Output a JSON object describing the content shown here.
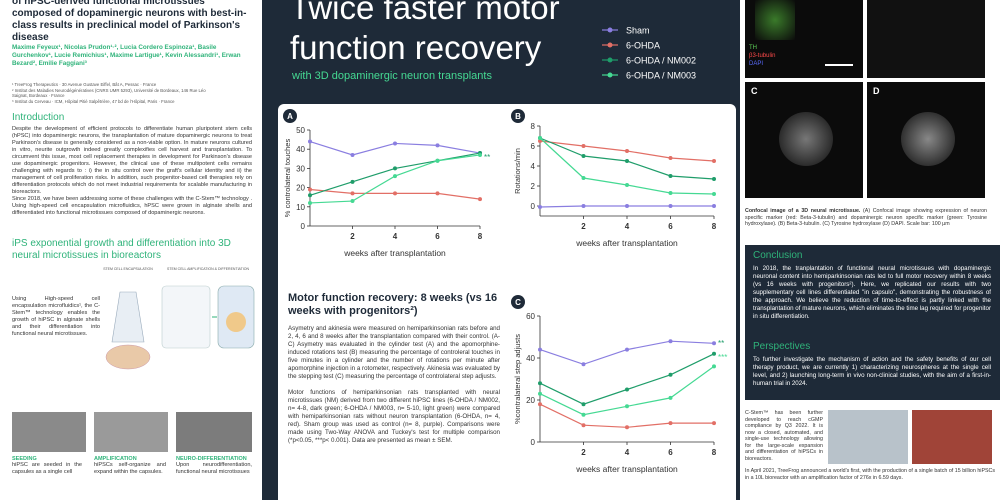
{
  "left": {
    "title": "of hPSC-derived functional microtissues composed of dopaminergic neurons with best-in-class results in preclinical model of Parkinson's disease",
    "authors": "Maxime Feyeux¹, Nicolas Prudon¹·², Lucia Cordero Espinoza¹, Basile Gurchenkov¹, Lucie Remichius¹, Maxime Lartigue¹, Kevin Alessandri¹, Erwan Bezard², Emilie Faggiani³",
    "affiliations": [
      "¹ TreeFrog Therapeutics · 30 Avenue Gustave Eiffel, Bât A, Pessac · France",
      "² Institut des Maladies Neurodégénératives (CNRS UMR 5293), Université de Bordeaux, 146 Rue Léo Saignat, Bordeaux · France",
      "³ Institut du Cerveau · ICM, Hôpital Pitié Salpêtrière, 47 bd de l'Hôpital, Paris · France"
    ],
    "intro_heading": "Introduction",
    "intro_paragraphs": [
      "Despite the development of efficient protocols to differentiate human pluripotent stem cells (hPSC) into dopaminergic neurons, the transplantation of mature dopaminergic neurons to treat Parkinson's disease is generally considered as a non-viable option. In mature neurons cultured in vitro, neurite outgrowth indeed greatly complexifies cell harvest and transplantation. To circumvent this issue, most cell replacement therapies in development for Parkinson's disease use dopaminergic progenitors. However, the clinical use of these multipotent cells remains challenging with regards to : i) the in situ control over the graft's cellular identity and ii) the management of cell proliferation risks. In addition, such progenitor-based cell therapies rely on differentiation protocols which do not meet industrial requirements for scalable manufacturing in bioreactors.",
      "Since 2018, we have been addressing some of these challenges with the C-Stem™ technology . Using high-speed cell encapsulation microfluidics, hPSC were grown in alginate shells and differentiated into functional microtissues composed of dopaminergic neurons."
    ],
    "ips_heading": "iPS exponential growth and differentiation into 3D neural microtissues in bioreactors",
    "ips_text": "Using High-speed cell encapsulation microfluidics¹, the C-Stem™ technology enables the growth of hiPSC in alginate shells and their differentiation into functional neural microtissues.",
    "diagram_labels": [
      "STEM CELL ENCAPSULATION",
      "STEM CELL AMPLIFICATION & DIFFERENTIATION"
    ],
    "steps": [
      {
        "title": "SEEDING",
        "text": "hiPSC are seeded in the capsules as a single cell"
      },
      {
        "title": "AMPLIFICATION",
        "text": "hiPSCs self-organize and expand within the capsules."
      },
      {
        "title": "NEURO-DIFFERENTIATION",
        "text": "Upon neurodifferentiation, functional neural microtissues"
      }
    ]
  },
  "middle": {
    "title": "Twice faster motor function recovery",
    "subtitle": "with 3D dopaminergic neuron transplants",
    "motor_heading": "Motor function recovery: 8 weeks (vs 16 weeks with progenitors²)",
    "motor_paragraphs": [
      "Asymetry and akinesia were measured on hemiparkinsonian rats before and 2, 4, 6 and 8 weeks after the transplantation compared with their control. (A-C) Asymetry was evaluated in the cylinder test (A) and the apomorphine-induced rotations test (B) measuring the percentage of controleral touches in five minutes in a cylinder and the number of rotations per minute after apomorphine injection in a rotometer, respectively. Akinesia was evaluated by the stepping test (C) measuring the percentage of controlateral step adjusts.",
      "Motor functions of hemiparkinsonian rats transplanted with neural microtissues (NM) derived from two different hiPSC lines (6-OHDA / NM002, n= 4-8, dark green; 6-OHDA / NM003, n= 5-10, light green) were compared with hemiparkinsonian rats without neuron transplantation (6-OHDA, n= 4, red). Sham group was used as control (n= 8, purple). Comparisons were made using Two-Way ANOVA and Tuckey's test for multiple comparison (*p<0.05, ***p< 0.001). Data are presented as mean ± SEM."
    ]
  },
  "legend": [
    {
      "name": "Sham",
      "color": "#8a7ee0"
    },
    {
      "name": "6-OHDA",
      "color": "#e26f66"
    },
    {
      "name": "6-OHDA / NM002",
      "color": "#1f9d6a"
    },
    {
      "name": "6-OHDA / NM003",
      "color": "#45d993"
    }
  ],
  "chart_data": [
    {
      "type": "line",
      "label": "A",
      "x_label": "weeks after transplantation",
      "y_label": "% controlateral touches",
      "x": [
        0,
        2,
        4,
        6,
        8
      ],
      "xlim": [
        0,
        8
      ],
      "xticks": [
        2,
        4,
        6,
        8
      ],
      "ylim": [
        0,
        50
      ],
      "yticks": [
        0,
        10,
        20,
        30,
        40,
        50
      ],
      "series": [
        {
          "values": [
            44,
            37,
            43,
            42,
            38
          ]
        },
        {
          "values": [
            19,
            17,
            17,
            17,
            14
          ]
        },
        {
          "values": [
            16,
            23,
            30,
            34,
            38
          ]
        },
        {
          "values": [
            12,
            13,
            26,
            34,
            37
          ]
        }
      ],
      "annotations": [
        "**"
      ]
    },
    {
      "type": "line",
      "label": "B",
      "x_label": "weeks after transplantation",
      "y_label": "Rotations/min",
      "x": [
        0,
        2,
        4,
        6,
        8
      ],
      "xlim": [
        0,
        8
      ],
      "xticks": [
        2,
        4,
        6,
        8
      ],
      "ylim": [
        -1,
        8
      ],
      "yticks": [
        0,
        2,
        4,
        6,
        8
      ],
      "series": [
        {
          "values": [
            -0.1,
            0,
            0,
            0,
            0
          ]
        },
        {
          "values": [
            6.5,
            6,
            5.5,
            4.8,
            4.5
          ]
        },
        {
          "values": [
            6.8,
            5,
            4.5,
            3,
            2.7
          ]
        },
        {
          "values": [
            6.8,
            2.8,
            2.1,
            1.3,
            1.2
          ]
        }
      ],
      "annotations": []
    },
    {
      "type": "line",
      "label": "C",
      "x_label": "weeks after transplantation",
      "y_label": "%contralateral step adjusts",
      "x": [
        0,
        2,
        4,
        6,
        8
      ],
      "xlim": [
        0,
        8
      ],
      "xticks": [
        2,
        4,
        6,
        8
      ],
      "ylim": [
        0,
        60
      ],
      "yticks": [
        0,
        20,
        40,
        60
      ],
      "series": [
        {
          "values": [
            44,
            37,
            44,
            48,
            47
          ]
        },
        {
          "values": [
            18,
            8,
            7,
            9,
            9
          ]
        },
        {
          "values": [
            28,
            18,
            25,
            32,
            42
          ]
        },
        {
          "values": [
            23,
            13,
            17,
            21,
            36
          ]
        }
      ],
      "annotations": [
        "**",
        "***"
      ]
    }
  ],
  "right": {
    "image_labels": [
      "TH",
      "β3-tubulin",
      "DAPI",
      "C",
      "D"
    ],
    "caption_title": "Confocal image of a 3D neural microtissue.",
    "caption": " (A) Confocal image showing expression of neuron specific marker (red: Beta-3-tubulin) and dopaminergic neuron specific marker (green: Tyrosine hydroxylase). (B) Beta-3-tubulin. (C) Tyrosine hydroxylase (D) DAPI. Scale bar: 100 µm",
    "conclusion_heading": "Conclusion",
    "conclusion": "In 2018, the tranplantation of functional neural microtissues with dopaminergic neuronal content into hemiparkinsonian rats led to full motor recovery within 8 weeks (vs 16 weeks with progenitors²). Here, we replicated our results with two supplementary cell lines differentiated \"in capsulo\", demonstrating the robustness of the approach. We believe the reduction of time-to-effect is partly linked with the transplantation of mature neurons, which eliminates the time lag required for progenitor in situ differentiation.",
    "perspectives_heading": "Perspectives",
    "perspectives": "To further investigate the mechanism of action and the safety benefits of our cell therapy product, we are currently 1) characterizing neurospheres at the single cell level, and 2) launching long-term in vivo non-clinical studies, with the aim of a first-in-human trial in 2024.",
    "cstem": "C-Stem™ has been further developed to reach cGMP compliance by Q3 2022. It is now a closed, automated, and single-use technology allowing for the large-scale expansion and differentiation of hiPSCs in bioreactors.",
    "batch": "In April 2021, TreeFrog announced a world's first, with the production of a single batch of 15 billion hiPSCs in a 10L bioreactor with an amplification factor of 276x in 6.59 days."
  }
}
